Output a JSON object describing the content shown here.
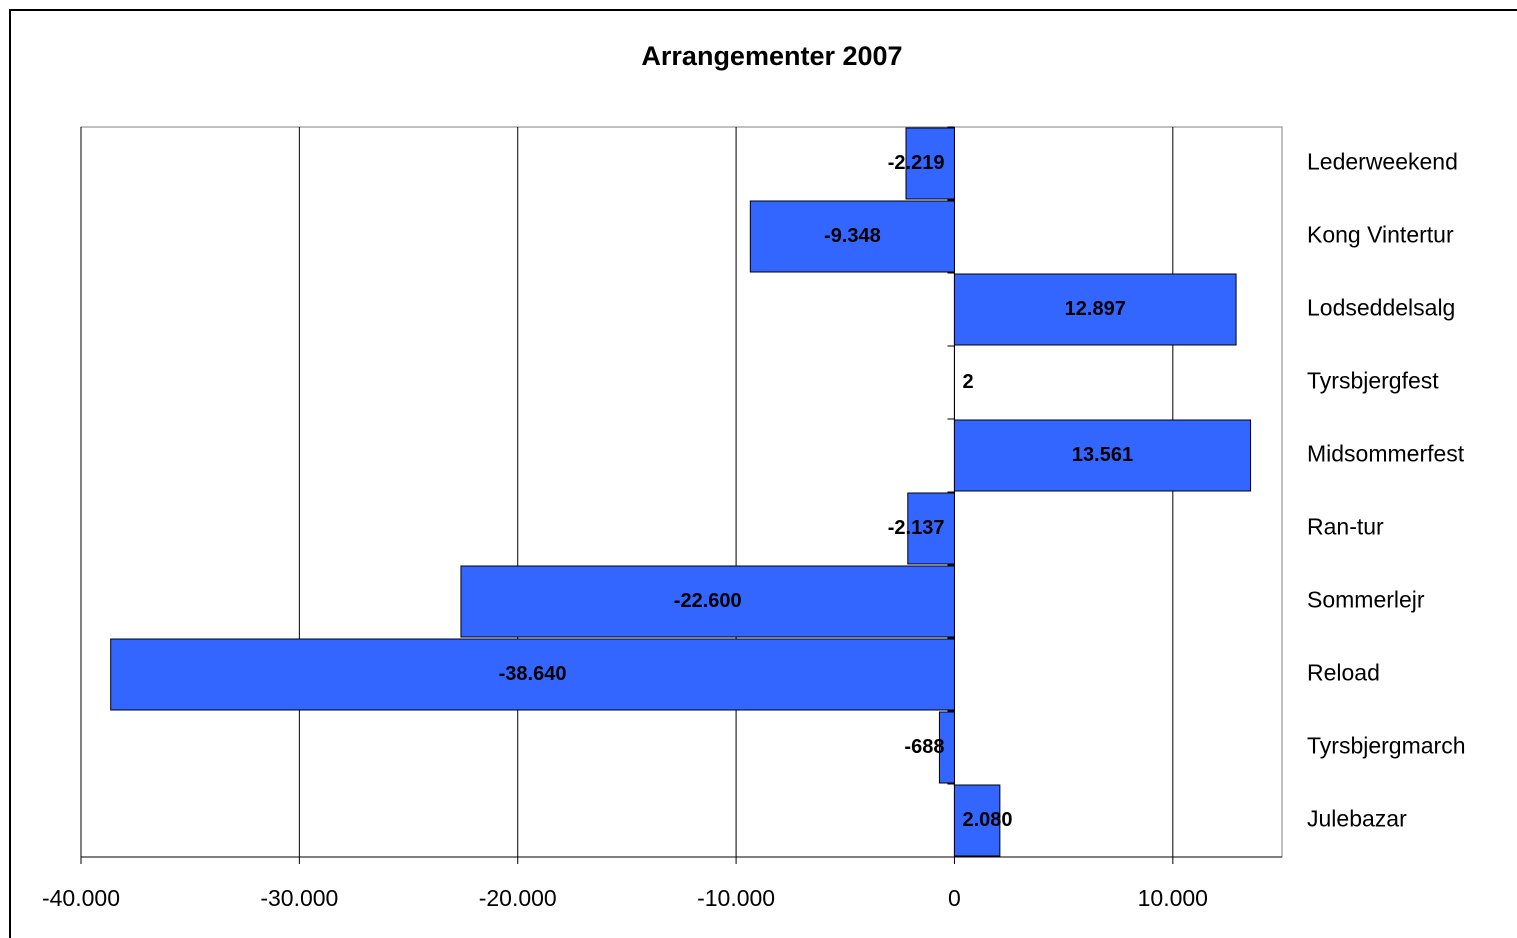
{
  "chart_data": {
    "type": "bar",
    "orientation": "horizontal",
    "title": "Arrangementer 2007",
    "categories": [
      "Lederweekend",
      "Kong Vintertur",
      "Lodseddelsalg",
      "Tyrsbjergfest",
      "Midsommerfest",
      "Ran-tur",
      "Sommerlejr",
      "Reload",
      "Tyrsbjergmarch",
      "Julebazar"
    ],
    "values": [
      -2219,
      -9348,
      12897,
      2,
      13561,
      -2137,
      -22600,
      -38640,
      -688,
      2080
    ],
    "value_labels": [
      "-2.219",
      "-9.348",
      "12.897",
      "2",
      "13.561",
      "-2.137",
      "-22.600",
      "-38.640",
      "-688",
      "2.080"
    ],
    "color": "#3366ff",
    "xlim": [
      -40000,
      15000
    ],
    "xticks": [
      {
        "value": -40000,
        "label": "-40.000"
      },
      {
        "value": -30000,
        "label": "-30.000"
      },
      {
        "value": -20000,
        "label": "-20.000"
      },
      {
        "value": -10000,
        "label": "-10.000"
      },
      0,
      {
        "value": 10000,
        "label": "10.000"
      }
    ],
    "grid": true
  }
}
